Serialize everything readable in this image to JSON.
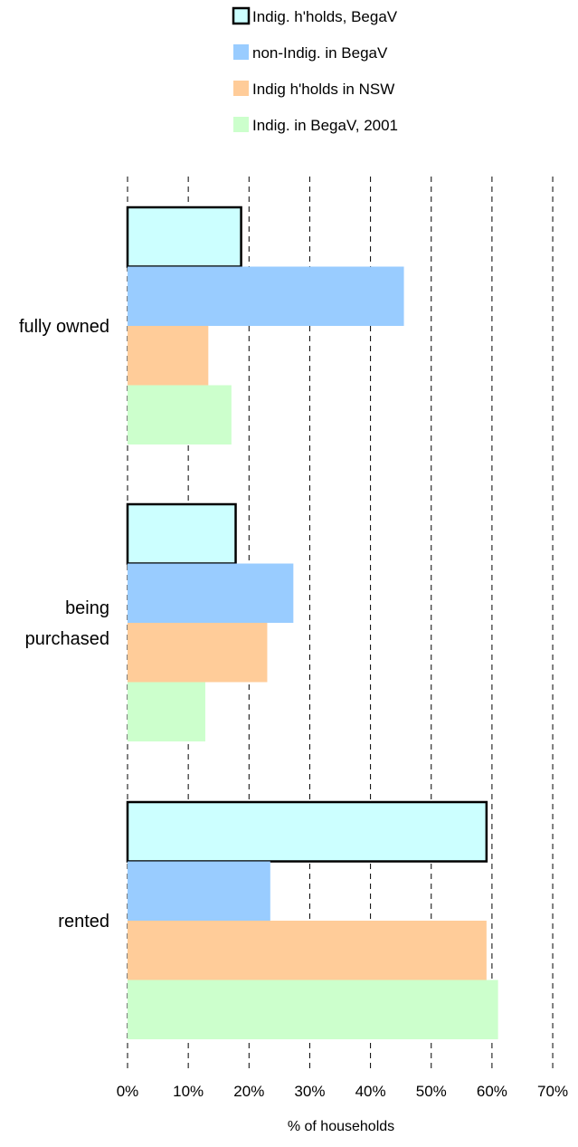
{
  "chart_data": {
    "type": "bar",
    "orientation": "horizontal",
    "categories": [
      "fully owned",
      "being purchased",
      "rented"
    ],
    "category_display_lines": [
      [
        "fully owned"
      ],
      [
        "being",
        "purchased"
      ],
      [
        "rented"
      ]
    ],
    "series": [
      {
        "name": "Indig. h'holds, BegaV",
        "values": [
          18.7,
          17.8,
          59.1
        ],
        "color": "#ccffff",
        "outlined": true
      },
      {
        "name": "non-Indig. in BegaV",
        "values": [
          45.5,
          27.3,
          23.5
        ],
        "color": "#99ccff",
        "outlined": false
      },
      {
        "name": "Indig h'holds in NSW",
        "values": [
          13.3,
          23.0,
          59.1
        ],
        "color": "#ffcc99",
        "outlined": false
      },
      {
        "name": "Indig. in BegaV, 2001",
        "values": [
          17.1,
          12.8,
          61.0
        ],
        "color": "#ccffcc",
        "outlined": false
      }
    ],
    "xlabel": "% of households",
    "ylabel": "",
    "xlim": [
      0,
      70
    ],
    "ticks": [
      0,
      10,
      20,
      30,
      40,
      50,
      60,
      70
    ],
    "tick_labels": [
      "0%",
      "10%",
      "20%",
      "30%",
      "40%",
      "50%",
      "60%",
      "70%"
    ],
    "grid": "vertical dashed",
    "legend_position": "top"
  }
}
